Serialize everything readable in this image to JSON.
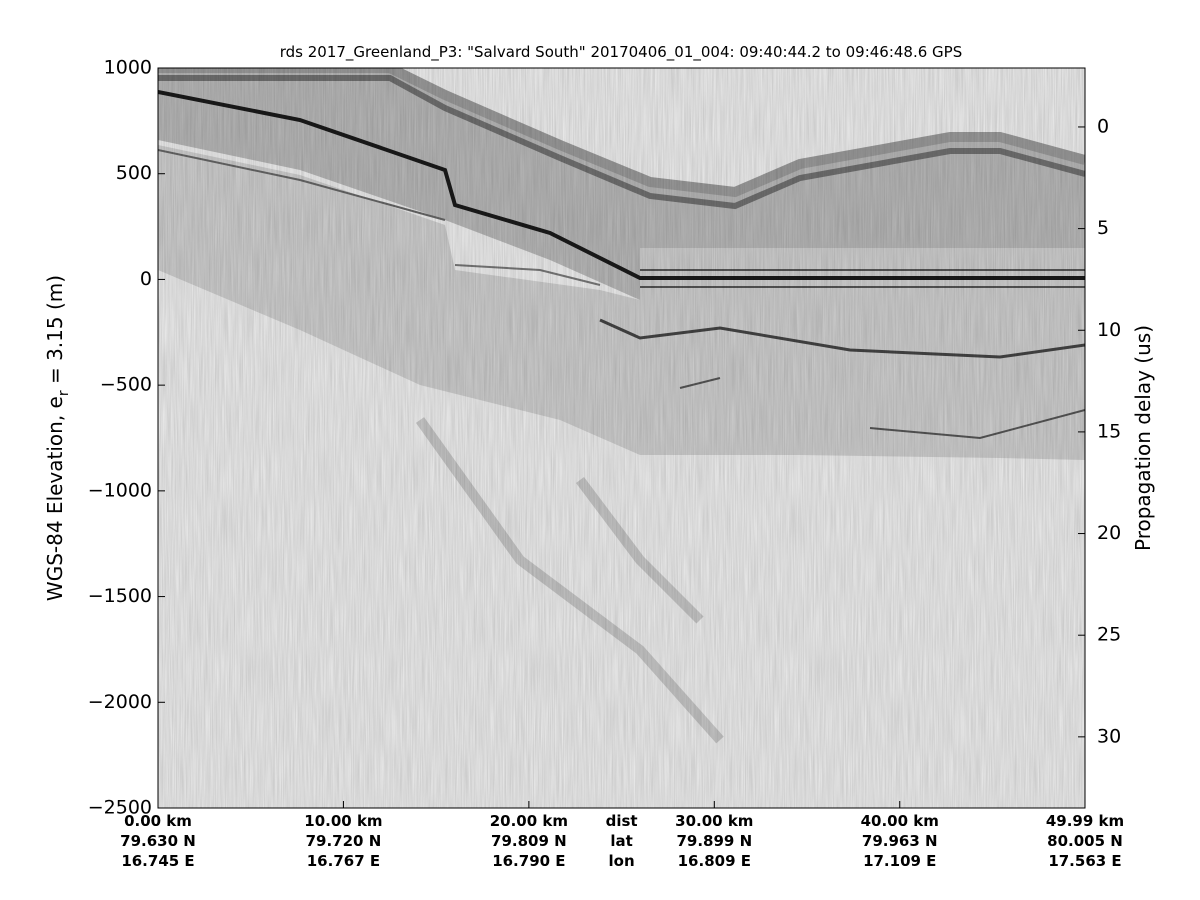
{
  "chart_data": {
    "type": "echogram",
    "title": "rds 2017_Greenland_P3: \"Salvard South\"  20170406_01_004: 09:40:44.2 to 09:46:48.6 GPS",
    "ylabel_parts": [
      "WGS-84 Elevation, e",
      "r",
      " = 3.15 (m)"
    ],
    "y2label": "Propagation delay (us)",
    "ylim": [
      -2500,
      1000
    ],
    "yticks": [
      {
        "value": -2500,
        "label": "−2500"
      },
      {
        "value": -2000,
        "label": "−2000"
      },
      {
        "value": -1500,
        "label": "−1500"
      },
      {
        "value": -1000,
        "label": "−1000"
      },
      {
        "value": -500,
        "label": "−500"
      },
      0,
      500,
      1000
    ],
    "y2lim": [
      -2.9,
      33.5
    ],
    "y2ticks": [
      0,
      5,
      10,
      15,
      20,
      25,
      30
    ],
    "xlim": [
      0,
      49.99
    ],
    "xticks": [
      {
        "value": 0,
        "label": "0.00 km"
      },
      {
        "value": 10,
        "label": "10.00 km"
      },
      {
        "value": 20,
        "label": "20.00 km"
      },
      {
        "value": 30,
        "label": "30.00 km"
      },
      {
        "value": 40,
        "label": "40.00 km"
      },
      {
        "value": 49.99,
        "label": "49.99 km"
      }
    ],
    "x_rows": [
      {
        "name": "dist"
      },
      {
        "name": "lat",
        "labels": [
          "79.630 N",
          "79.720 N",
          "79.809 N",
          "79.899 N",
          "79.963 N",
          "80.005 N"
        ]
      },
      {
        "name": "lon",
        "labels": [
          "16.745 E",
          "16.767 E",
          "16.790 E",
          "16.809 E",
          "17.109 E",
          "17.563 E"
        ]
      }
    ]
  }
}
